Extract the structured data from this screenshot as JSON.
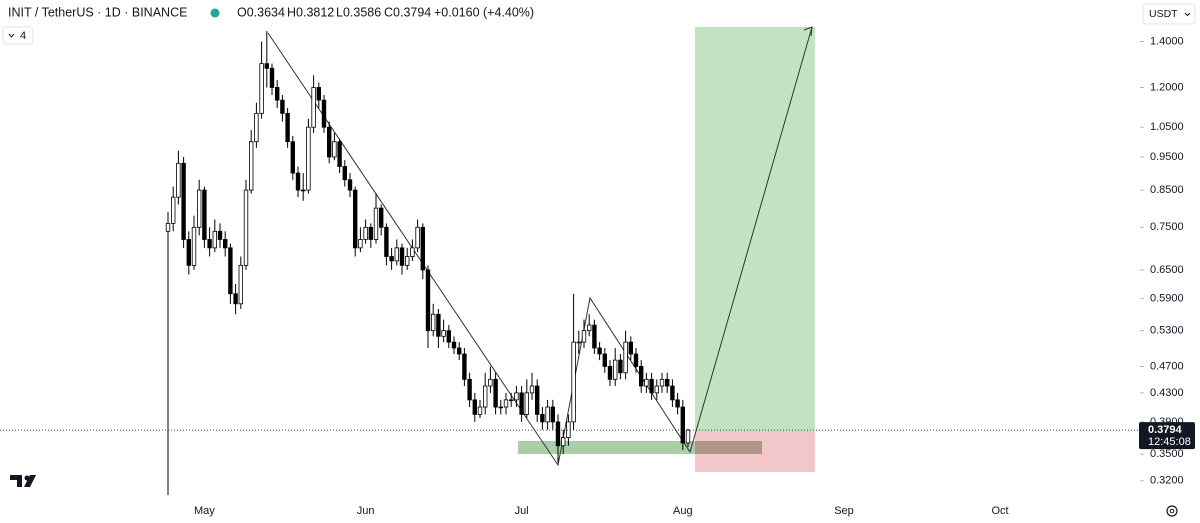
{
  "header": {
    "indicators": 4,
    "currency": "USDT",
    "open": "O0.3634",
    "high": "H0.3812",
    "low": "L0.3586",
    "close": "C0.3794",
    "change": "+0.0160 (+4.40%)",
    "countdown": "12:45:08"
  },
  "chart_data": {
    "type": "candlestick",
    "title": "INIT / TetherUS · 1D · BINANCE",
    "categories": [
      null,
      null,
      null,
      null,
      null,
      null,
      null,
      "May",
      null,
      null,
      null,
      null,
      null,
      null,
      null,
      null,
      null,
      null,
      null,
      null,
      null,
      null,
      null,
      null,
      null,
      null,
      null,
      null,
      null,
      null,
      null,
      null,
      null,
      null,
      null,
      null,
      null,
      null,
      "Jun",
      null,
      null,
      null,
      null,
      null,
      null,
      null,
      null,
      null,
      null,
      null,
      null,
      null,
      null,
      null,
      null,
      null,
      null,
      null,
      null,
      null,
      null,
      null,
      null,
      null,
      null,
      null,
      null,
      null,
      "Jul",
      null,
      null,
      null,
      null,
      null,
      null,
      null,
      null,
      null,
      null,
      null,
      null,
      null,
      null,
      null,
      null,
      null,
      null,
      null,
      null,
      null,
      null,
      null,
      null,
      null,
      null,
      null,
      null,
      null,
      null,
      "Aug",
      null,
      null,
      null,
      null,
      null,
      null,
      null,
      null,
      null,
      null,
      null,
      null,
      null,
      null,
      null,
      null,
      null,
      null,
      null,
      null,
      null,
      null,
      null,
      null,
      null,
      null,
      null,
      null,
      null,
      null,
      "Sep",
      null,
      null,
      null,
      null,
      null,
      null,
      null,
      null,
      null,
      null,
      null,
      null,
      null,
      null,
      null,
      null,
      null,
      null,
      null,
      null,
      null,
      null,
      null,
      null,
      null,
      null,
      null,
      null,
      null,
      "Oct",
      null,
      null,
      null,
      null,
      null,
      null,
      null,
      null,
      null,
      null,
      null,
      null,
      null,
      null,
      null,
      null,
      null,
      null,
      null,
      null,
      null,
      null,
      null,
      null,
      null
    ],
    "open": [
      0.74,
      0.76,
      0.83,
      0.93,
      0.72,
      0.66,
      0.75,
      0.85,
      0.72,
      0.7,
      0.74,
      0.72,
      0.7,
      0.6,
      0.58,
      0.66,
      0.85,
      1.0,
      1.1,
      1.3,
      1.28,
      1.2,
      1.15,
      1.1,
      1.0,
      0.9,
      0.85,
      0.85,
      1.05,
      1.2,
      1.15,
      1.05,
      0.95,
      1.0,
      0.92,
      0.88,
      0.85,
      0.7,
      0.72,
      0.75,
      0.72,
      0.8,
      0.75,
      0.68,
      0.67,
      0.7,
      0.66,
      0.68,
      0.7,
      0.75,
      0.65,
      0.53,
      0.56,
      0.52,
      0.53,
      0.51,
      0.5,
      0.49,
      0.45,
      0.42,
      0.4,
      0.41,
      0.44,
      0.45,
      0.41,
      0.41,
      0.42,
      0.42,
      0.43,
      0.4,
      0.43,
      0.44,
      0.4,
      0.39,
      0.41,
      0.39,
      0.36,
      0.37,
      0.39,
      0.51,
      0.51,
      0.53,
      0.54,
      0.5,
      0.49,
      0.47,
      0.45,
      0.48,
      0.46,
      0.51,
      0.49,
      0.47,
      0.44,
      0.45,
      0.43,
      0.44,
      0.45,
      0.44,
      0.42,
      0.41,
      0.3634,
      null,
      null,
      null,
      null,
      null,
      null,
      null,
      null,
      null,
      null,
      null,
      null,
      null,
      null,
      null,
      null,
      null,
      null,
      null,
      null,
      null,
      null,
      null,
      null,
      null,
      null,
      null,
      null,
      null,
      null,
      null,
      null,
      null,
      null,
      null,
      null,
      null,
      null,
      null,
      null,
      null,
      null,
      null,
      null,
      null,
      null,
      null,
      null,
      null,
      null,
      null,
      null,
      null,
      null,
      null,
      null,
      null,
      null,
      null,
      null,
      null,
      null,
      null,
      null,
      null,
      null,
      null,
      null,
      null,
      null,
      null,
      null,
      null,
      null,
      null,
      null,
      null,
      null,
      null,
      null,
      null,
      null,
      null,
      null,
      null
    ],
    "high": [
      0.79,
      0.86,
      0.97,
      0.95,
      0.74,
      0.78,
      0.88,
      0.86,
      0.75,
      0.77,
      0.76,
      0.74,
      0.71,
      0.62,
      0.68,
      0.88,
      1.04,
      1.14,
      1.4,
      1.45,
      1.3,
      1.23,
      1.17,
      1.12,
      1.02,
      0.92,
      0.9,
      1.08,
      1.25,
      1.22,
      1.17,
      1.07,
      1.03,
      1.01,
      0.94,
      0.9,
      0.86,
      0.75,
      0.77,
      0.76,
      0.84,
      0.81,
      0.76,
      0.7,
      0.72,
      0.71,
      0.7,
      0.72,
      0.77,
      0.76,
      0.66,
      0.58,
      0.57,
      0.55,
      0.54,
      0.52,
      0.51,
      0.5,
      0.46,
      0.43,
      0.42,
      0.46,
      0.47,
      0.46,
      0.42,
      0.43,
      0.43,
      0.44,
      0.44,
      0.45,
      0.46,
      0.45,
      0.41,
      0.42,
      0.42,
      0.4,
      0.38,
      0.4,
      0.6,
      0.53,
      0.55,
      0.56,
      0.55,
      0.51,
      0.5,
      0.48,
      0.5,
      0.49,
      0.53,
      0.52,
      0.5,
      0.48,
      0.46,
      0.46,
      0.45,
      0.46,
      0.46,
      0.45,
      0.43,
      0.42,
      0.3812,
      null,
      null,
      null,
      null,
      null,
      null,
      null,
      null,
      null,
      null,
      null,
      null,
      null,
      null,
      null,
      null,
      null,
      null,
      null,
      null,
      null,
      null,
      null,
      null,
      null,
      null,
      null,
      null,
      null,
      null,
      null,
      null,
      null,
      null,
      null,
      null,
      null,
      null,
      null,
      null,
      null,
      null,
      null,
      null,
      null,
      null,
      null,
      null,
      null,
      null,
      null,
      null,
      null,
      null,
      null,
      null,
      null,
      null,
      null,
      null,
      null,
      null,
      null,
      null,
      null,
      null,
      null,
      null,
      null,
      null,
      null,
      null,
      null,
      null,
      null,
      null,
      null,
      null,
      null,
      null,
      null,
      null,
      null,
      null,
      null
    ],
    "low": [
      0.305,
      0.74,
      0.81,
      0.7,
      0.64,
      0.65,
      0.73,
      0.7,
      0.68,
      0.69,
      0.7,
      0.68,
      0.58,
      0.56,
      0.57,
      0.65,
      0.84,
      0.98,
      1.08,
      1.2,
      1.17,
      1.12,
      1.07,
      0.98,
      0.88,
      0.83,
      0.82,
      0.84,
      1.03,
      1.12,
      1.03,
      0.93,
      0.94,
      0.9,
      0.86,
      0.83,
      0.68,
      0.69,
      0.71,
      0.7,
      0.71,
      0.73,
      0.66,
      0.65,
      0.66,
      0.64,
      0.65,
      0.67,
      0.69,
      0.63,
      0.5,
      0.52,
      0.5,
      0.51,
      0.5,
      0.49,
      0.48,
      0.44,
      0.41,
      0.39,
      0.395,
      0.4,
      0.43,
      0.4,
      0.4,
      0.4,
      0.41,
      0.41,
      0.39,
      0.395,
      0.42,
      0.39,
      0.38,
      0.38,
      0.38,
      0.34,
      0.35,
      0.36,
      0.38,
      0.49,
      0.5,
      0.52,
      0.49,
      0.48,
      0.46,
      0.44,
      0.44,
      0.45,
      0.45,
      0.48,
      0.46,
      0.43,
      0.43,
      0.42,
      0.42,
      0.43,
      0.43,
      0.41,
      0.4,
      0.355,
      0.3586,
      null,
      null,
      null,
      null,
      null,
      null,
      null,
      null,
      null,
      null,
      null,
      null,
      null,
      null,
      null,
      null,
      null,
      null,
      null,
      null,
      null,
      null,
      null,
      null,
      null,
      null,
      null,
      null,
      null,
      null,
      null,
      null,
      null,
      null,
      null,
      null,
      null,
      null,
      null,
      null,
      null,
      null,
      null,
      null,
      null,
      null,
      null,
      null,
      null,
      null,
      null,
      null,
      null,
      null,
      null,
      null,
      null,
      null,
      null,
      null,
      null,
      null,
      null,
      null,
      null,
      null,
      null,
      null,
      null,
      null,
      null,
      null,
      null,
      null,
      null,
      null,
      null,
      null,
      null,
      null,
      null,
      null,
      null,
      null,
      null
    ],
    "close": [
      0.76,
      0.83,
      0.93,
      0.72,
      0.66,
      0.75,
      0.85,
      0.72,
      0.7,
      0.74,
      0.72,
      0.7,
      0.6,
      0.58,
      0.66,
      0.85,
      1.0,
      1.1,
      1.3,
      1.28,
      1.2,
      1.15,
      1.1,
      1.0,
      0.9,
      0.85,
      0.85,
      1.05,
      1.2,
      1.15,
      1.05,
      0.95,
      1.0,
      0.92,
      0.88,
      0.85,
      0.7,
      0.72,
      0.75,
      0.72,
      0.8,
      0.75,
      0.68,
      0.67,
      0.7,
      0.66,
      0.68,
      0.7,
      0.75,
      0.65,
      0.53,
      0.56,
      0.52,
      0.53,
      0.51,
      0.5,
      0.49,
      0.45,
      0.42,
      0.4,
      0.41,
      0.44,
      0.45,
      0.41,
      0.41,
      0.42,
      0.42,
      0.43,
      0.4,
      0.43,
      0.44,
      0.4,
      0.39,
      0.41,
      0.39,
      0.36,
      0.37,
      0.39,
      0.51,
      0.51,
      0.53,
      0.54,
      0.5,
      0.49,
      0.47,
      0.45,
      0.48,
      0.46,
      0.51,
      0.49,
      0.47,
      0.44,
      0.45,
      0.43,
      0.44,
      0.45,
      0.44,
      0.42,
      0.41,
      0.3634,
      0.3794,
      null,
      null,
      null,
      null,
      null,
      null,
      null,
      null,
      null,
      null,
      null,
      null,
      null,
      null,
      null,
      null,
      null,
      null,
      null,
      null,
      null,
      null,
      null,
      null,
      null,
      null,
      null,
      null,
      null,
      null,
      null,
      null,
      null,
      null,
      null,
      null,
      null,
      null,
      null,
      null,
      null,
      null,
      null,
      null,
      null,
      null,
      null,
      null,
      null,
      null,
      null,
      null,
      null,
      null,
      null,
      null,
      null,
      null,
      null,
      null,
      null,
      null,
      null,
      null,
      null,
      null,
      null,
      null,
      null,
      null,
      null,
      null,
      null,
      null,
      null,
      null,
      null,
      null,
      null,
      null,
      null,
      null,
      null,
      null,
      null
    ],
    "ylim": [
      0.3,
      1.61
    ],
    "log_scale": true,
    "grid": false,
    "yticks": [
      {
        "value": 1.4,
        "label": "1.4000"
      },
      {
        "value": 1.2,
        "label": "1.2000"
      },
      {
        "value": 1.05,
        "label": "1.0500"
      },
      {
        "value": 0.95,
        "label": "0.9500"
      },
      {
        "value": 0.85,
        "label": "0.8500"
      },
      {
        "value": 0.75,
        "label": "0.7500"
      },
      {
        "value": 0.65,
        "label": "0.6500"
      },
      {
        "value": 0.59,
        "label": "0.5900"
      },
      {
        "value": 0.53,
        "label": "0.5300"
      },
      {
        "value": 0.47,
        "label": "0.4700"
      },
      {
        "value": 0.43,
        "label": "0.4300"
      },
      {
        "value": 0.39,
        "label": "0.3900"
      },
      {
        "value": 0.35,
        "label": "0.3500"
      },
      {
        "value": 0.32,
        "label": "0.3200"
      }
    ],
    "up_color": "#ffffff",
    "down_color": "#000000",
    "wick_color": "#000000"
  }
}
